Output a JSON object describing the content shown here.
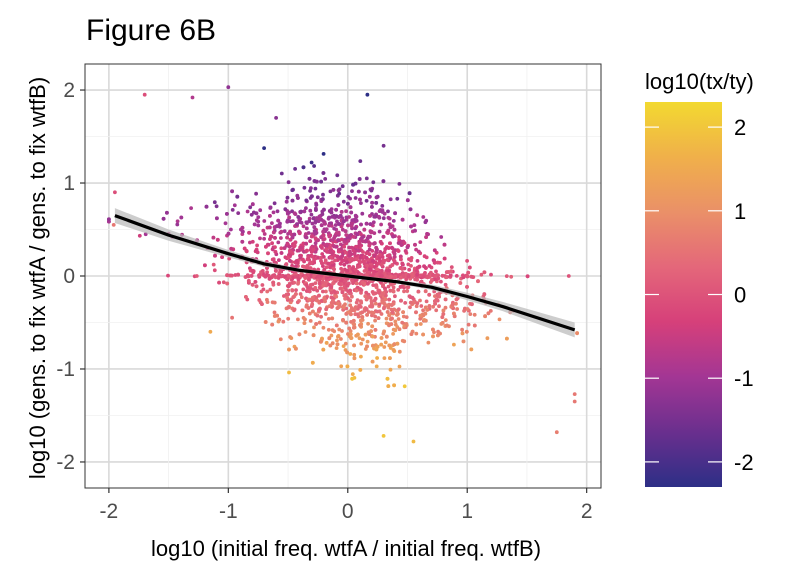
{
  "chart_data": {
    "type": "scatter",
    "title": "Figure 6B",
    "xlabel": "log10 (initial freq. wtfA / initial freq. wtfB)",
    "ylabel": "log10 (gens. to fix wtfA / gens. to fix wtfB)",
    "xlim": [
      -2.2,
      2.12
    ],
    "ylim": [
      -2.28,
      2.28
    ],
    "x_ticks": [
      -2,
      -1,
      0,
      1,
      2
    ],
    "x_tick_labels": [
      "-2",
      "-1",
      "0",
      "1",
      "2"
    ],
    "y_ticks": [
      -2,
      -1,
      0,
      1,
      2
    ],
    "y_tick_labels": [
      "-2",
      "-1",
      "0",
      "1",
      "2"
    ],
    "grid": true,
    "color_scale": {
      "title": "log10(tx/ty)",
      "min": -2.3,
      "max": 2.3,
      "ticks": [
        -2,
        -1,
        0,
        1,
        2
      ],
      "tick_labels": [
        "-2",
        "-1",
        "0",
        "1",
        "2"
      ],
      "colors": [
        "#2d2f86",
        "#6a2f8e",
        "#a33694",
        "#d6407a",
        "#e4677a",
        "#ea9068",
        "#f0b04a",
        "#f2d930"
      ]
    },
    "smooth_line": {
      "x": [
        -1.95,
        -1.5,
        -1.0,
        -0.7,
        -0.4,
        0.0,
        0.4,
        0.7,
        1.0,
        1.3,
        1.9
      ],
      "y": [
        0.65,
        0.44,
        0.24,
        0.13,
        0.06,
        0.0,
        -0.06,
        -0.12,
        -0.22,
        -0.33,
        -0.58
      ],
      "band": [
        0.08,
        0.06,
        0.04,
        0.03,
        0.02,
        0.02,
        0.02,
        0.03,
        0.04,
        0.05,
        0.08
      ]
    },
    "scatter_points": {
      "n": 3000,
      "distribution": "dense cloud centered near (0, 0); y values near zero cluster along y = 0; higher y colored purple, lower y colored yellow",
      "outliers": [
        {
          "x": -1.96,
          "y": 0.55,
          "c": 0.6
        },
        {
          "x": -1.95,
          "y": 0.9,
          "c": -0.1
        },
        {
          "x": -1.7,
          "y": 1.95,
          "c": -0.1
        },
        {
          "x": -1.3,
          "y": 1.92,
          "c": -0.8
        },
        {
          "x": -1.0,
          "y": 2.03,
          "c": -1.2
        },
        {
          "x": -1.15,
          "y": -0.6,
          "c": 1.5
        },
        {
          "x": 1.9,
          "y": -1.27,
          "c": 0.6
        },
        {
          "x": 1.9,
          "y": -1.35,
          "c": 0.6
        },
        {
          "x": 1.75,
          "y": -1.68,
          "c": 0.7
        },
        {
          "x": 1.85,
          "y": 0.0,
          "c": 0.0
        },
        {
          "x": 0.55,
          "y": -1.78,
          "c": 1.8
        },
        {
          "x": 0.3,
          "y": -1.72,
          "c": 2.0
        },
        {
          "x": -0.6,
          "y": 1.7,
          "c": -1.3
        },
        {
          "x": 0.3,
          "y": 1.4,
          "c": -1.5
        }
      ]
    }
  }
}
